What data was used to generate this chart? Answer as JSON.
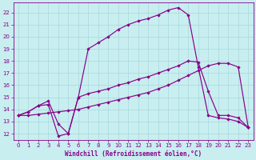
{
  "xlabel": "Windchill (Refroidissement éolien,°C)",
  "bg_color": "#c8eef0",
  "grid_color": "#a8d8dc",
  "line_color": "#880088",
  "x_ticks": [
    0,
    1,
    2,
    3,
    4,
    5,
    6,
    7,
    8,
    9,
    10,
    11,
    12,
    13,
    14,
    15,
    16,
    17,
    18,
    19,
    20,
    21,
    22,
    23
  ],
  "y_ticks": [
    12,
    13,
    14,
    15,
    16,
    17,
    18,
    19,
    20,
    21,
    22
  ],
  "xlim": [
    -0.5,
    23.5
  ],
  "ylim": [
    11.5,
    22.8
  ],
  "series_top_x": [
    0,
    1,
    2,
    3,
    4,
    5,
    6,
    7,
    8,
    9,
    10,
    11,
    12,
    13,
    14,
    15,
    16,
    17,
    18,
    19,
    20,
    21,
    22,
    23
  ],
  "series_top_y": [
    13.5,
    13.8,
    14.3,
    14.7,
    12.8,
    12.0,
    15.0,
    19.0,
    19.5,
    20.0,
    20.6,
    21.0,
    21.3,
    21.5,
    21.8,
    22.2,
    22.4,
    21.8,
    17.5,
    13.5,
    13.3,
    13.2,
    13.0,
    12.5
  ],
  "series_mid_x": [
    0,
    1,
    2,
    3,
    4,
    5,
    6,
    7,
    8,
    9,
    10,
    11,
    12,
    13,
    14,
    15,
    16,
    17,
    18,
    19,
    20,
    21,
    22,
    23
  ],
  "series_mid_y": [
    13.5,
    13.8,
    14.3,
    14.4,
    11.8,
    12.0,
    15.0,
    15.3,
    15.5,
    15.7,
    16.0,
    16.2,
    16.5,
    16.7,
    17.0,
    17.3,
    17.6,
    18.0,
    17.9,
    15.5,
    13.5,
    13.5,
    13.3,
    12.5
  ],
  "series_bot_x": [
    0,
    1,
    2,
    3,
    4,
    5,
    6,
    7,
    8,
    9,
    10,
    11,
    12,
    13,
    14,
    15,
    16,
    17,
    18,
    19,
    20,
    21,
    22,
    23
  ],
  "series_bot_y": [
    13.5,
    13.5,
    13.6,
    13.7,
    13.8,
    13.9,
    14.0,
    14.2,
    14.4,
    14.6,
    14.8,
    15.0,
    15.2,
    15.4,
    15.7,
    16.0,
    16.4,
    16.8,
    17.2,
    17.6,
    17.8,
    17.8,
    17.5,
    12.5
  ]
}
